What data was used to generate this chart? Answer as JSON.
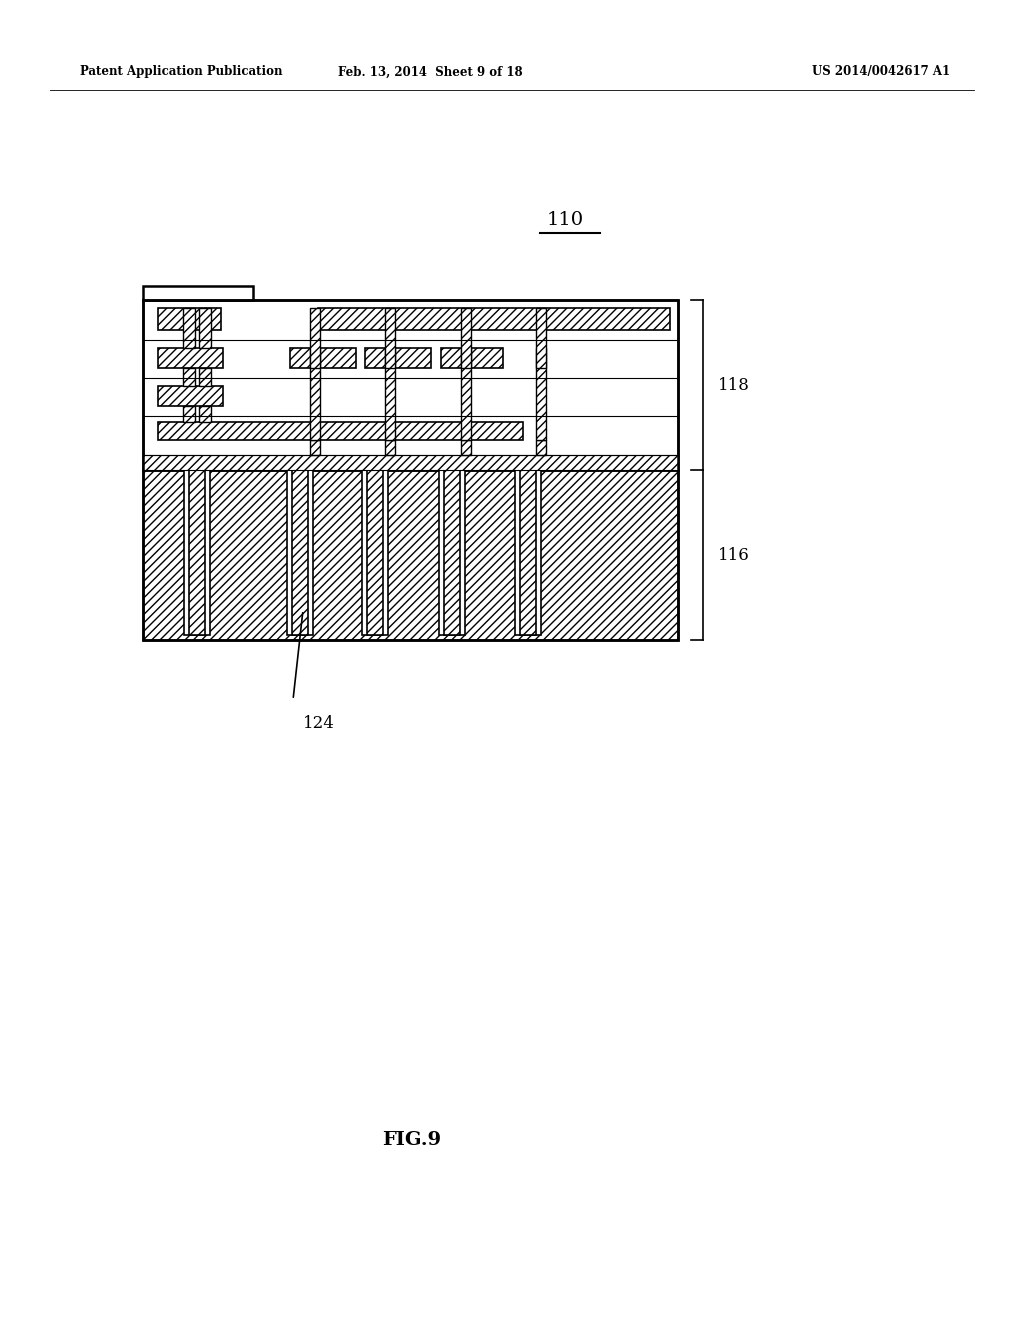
{
  "bg_color": "#ffffff",
  "header_left": "Patent Application Publication",
  "header_center": "Feb. 13, 2014  Sheet 9 of 18",
  "header_right": "US 2014/0042617 A1",
  "label_110": "110",
  "label_116": "116",
  "label_118": "118",
  "label_124": "124",
  "fig_label": "FIG.9",
  "lw_outer": 1.8,
  "lw_inner": 1.2,
  "lw_thin": 0.8
}
